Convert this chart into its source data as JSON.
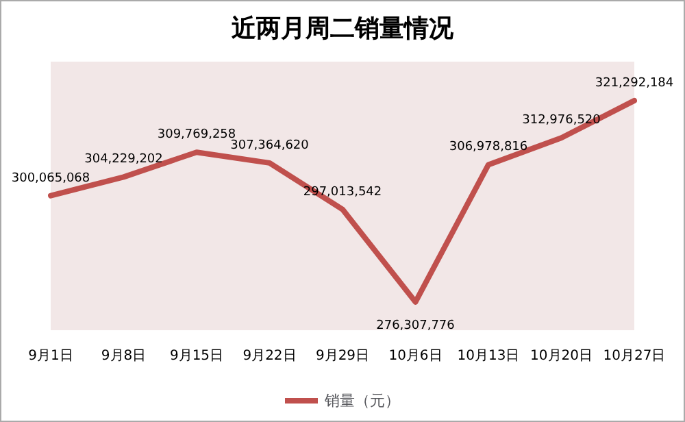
{
  "chart_data": {
    "type": "line",
    "title": "近两月周二销量情况",
    "categories": [
      "9月1日",
      "9月8日",
      "9月15日",
      "9月22日",
      "9月29日",
      "10月6日",
      "10月13日",
      "10月20日",
      "10月27日"
    ],
    "series": [
      {
        "name": "销量（元）",
        "color": "#c0504d",
        "values": [
          300065068,
          304229202,
          309769258,
          307364620,
          297013542,
          276307776,
          306978816,
          312976520,
          321292184
        ],
        "value_labels": [
          "300,065,068",
          "304,229,202",
          "309,769,258",
          "307,364,620",
          "297,013,542",
          "276,307,776",
          "306,978,816",
          "312,976,520",
          "321,292,184"
        ]
      }
    ],
    "legend": "bottom",
    "grid": false,
    "marker": "none",
    "line_style": "solid"
  }
}
